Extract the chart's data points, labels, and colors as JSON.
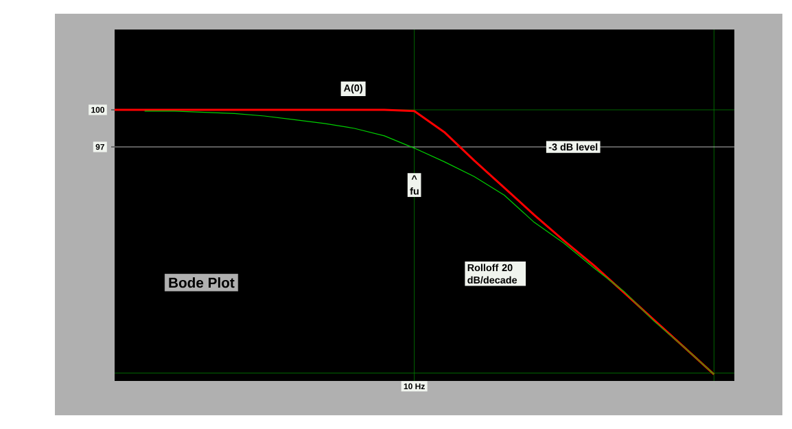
{
  "chart_data": {
    "type": "line",
    "title": "Bode Plot",
    "categories": [
      null,
      null,
      null,
      null,
      null,
      null,
      null,
      null,
      null,
      null,
      null,
      null,
      null,
      null,
      null,
      null,
      null,
      null,
      null,
      null,
      null
    ],
    "ylim": [
      78.06,
      106.5
    ],
    "yticks": [
      100,
      97
    ],
    "series": [
      {
        "color": "#ff0000",
        "values": [
          100,
          100,
          100,
          100,
          100,
          100,
          100,
          100,
          100,
          100,
          99.9,
          98.2,
          95.9,
          93.7,
          91.5,
          89.4,
          87.4,
          85.2,
          83.0,
          80.8,
          78.6
        ]
      },
      {
        "color": "#00d000",
        "values": [
          null,
          99.9,
          99.9,
          99.8,
          99.7,
          99.5,
          99.2,
          98.9,
          98.5,
          97.9,
          96.9,
          95.8,
          94.6,
          93.1,
          90.9,
          89.2,
          87.2,
          85.3,
          82.9,
          80.8,
          78.6
        ]
      }
    ],
    "ref_lines": [
      {
        "axis": "y",
        "value": 100,
        "color": "#008000"
      },
      {
        "axis": "y",
        "value": 78.7,
        "color": "#008000"
      },
      {
        "axis": "y",
        "value": 97,
        "color": "#e8e8e8",
        "label": "-3 dB level"
      }
    ],
    "annotations": [
      {
        "text": "A(0)",
        "y": 101.7
      },
      {
        "text": "^ fu",
        "y": 97
      },
      "Rolloff 20 dB/decade",
      "10 Hz"
    ]
  }
}
